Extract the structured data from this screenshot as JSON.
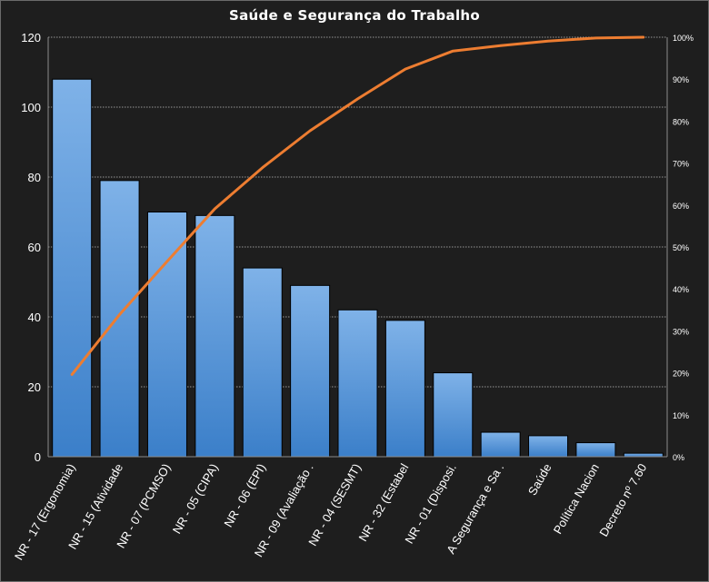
{
  "chart_data": {
    "type": "bar",
    "title": "Saúde e Segurança do Trabalho",
    "categories": [
      "NR - 17 (Ergonomia)",
      "NR - 15 (Atividade",
      "NR - 07 (PCMSO)",
      "NR - 05 (CIPA)",
      "NR - 06 (EPI)",
      "NR - 09 (Avaliação .",
      "NR - 04 (SESMT)",
      "NR - 32 (Estabel",
      "NR - 01 (Disposi.",
      "A Segurança e Sa .",
      "Saúde",
      "Política Nacion",
      "Decreto nº 7.60"
    ],
    "series": [
      {
        "type": "bar",
        "axis": "left",
        "values": [
          108,
          79,
          70,
          69,
          54,
          49,
          42,
          39,
          24,
          7,
          6,
          4,
          1
        ]
      },
      {
        "type": "line",
        "axis": "right",
        "values": [
          19.6,
          33.9,
          46.6,
          59.1,
          68.9,
          77.7,
          85.3,
          92.4,
          96.7,
          98.0,
          99.1,
          99.8,
          100
        ]
      }
    ],
    "y_left": {
      "min": 0,
      "max": 120,
      "ticks": [
        0,
        20,
        40,
        60,
        80,
        100,
        120
      ]
    },
    "y_right": {
      "min": 0,
      "max": 100,
      "ticks": [
        "0%",
        "10%",
        "20%",
        "30%",
        "40%",
        "50%",
        "60%",
        "70%",
        "80%",
        "90%",
        "100%"
      ]
    },
    "grid": true,
    "colors": {
      "bar": "#4a90d9",
      "line": "#ed7d31",
      "background": "#1e1e1e",
      "text": "#ffffff"
    }
  }
}
